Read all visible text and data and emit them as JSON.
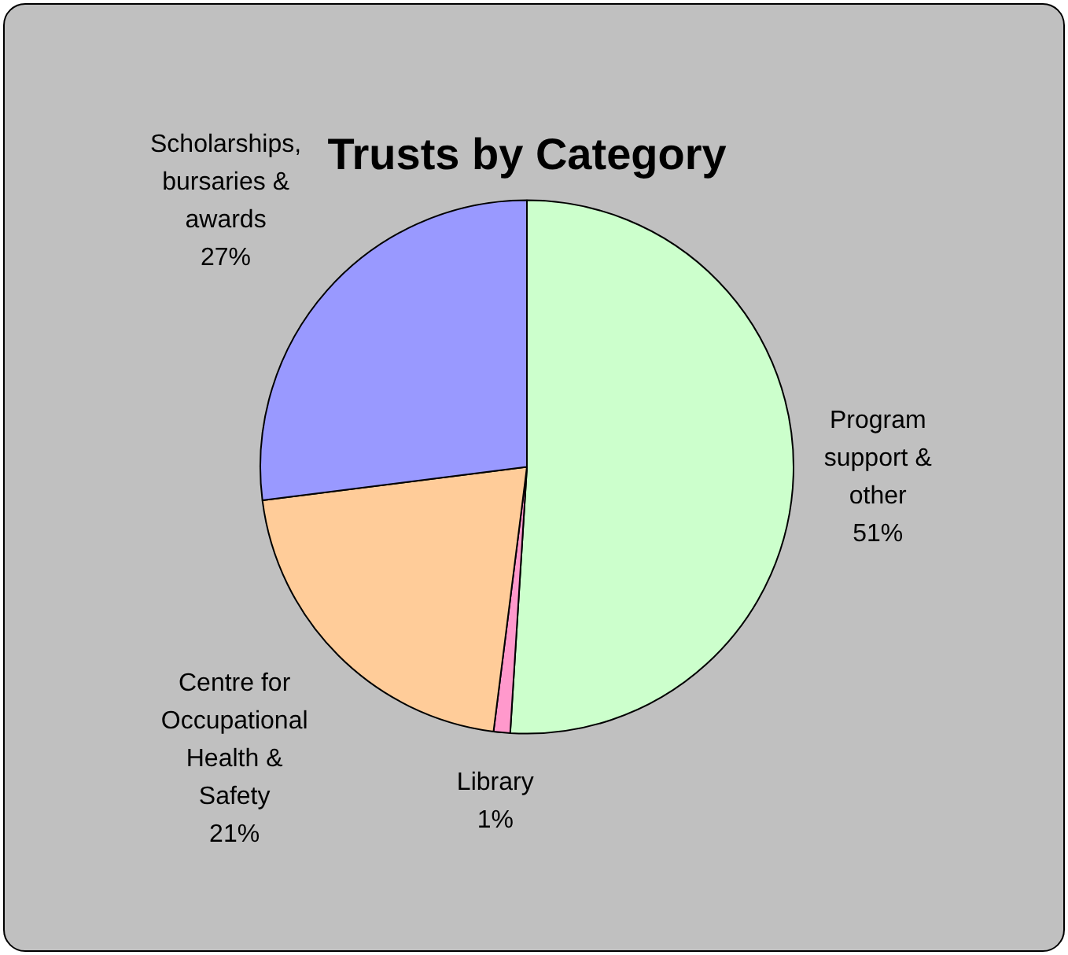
{
  "chart_data": {
    "type": "pie",
    "title": "Trusts by Category",
    "categories": [
      "Program support & other",
      "Library",
      "Centre for Occupational Health & Safety",
      "Scholarships, bursaries & awards"
    ],
    "values": [
      51,
      1,
      21,
      27
    ],
    "colors": [
      "#ccffcc",
      "#ff99cc",
      "#ffcc99",
      "#9999ff"
    ],
    "value_labels": [
      "51%",
      "1%",
      "21%",
      "27%"
    ],
    "legend": false
  }
}
